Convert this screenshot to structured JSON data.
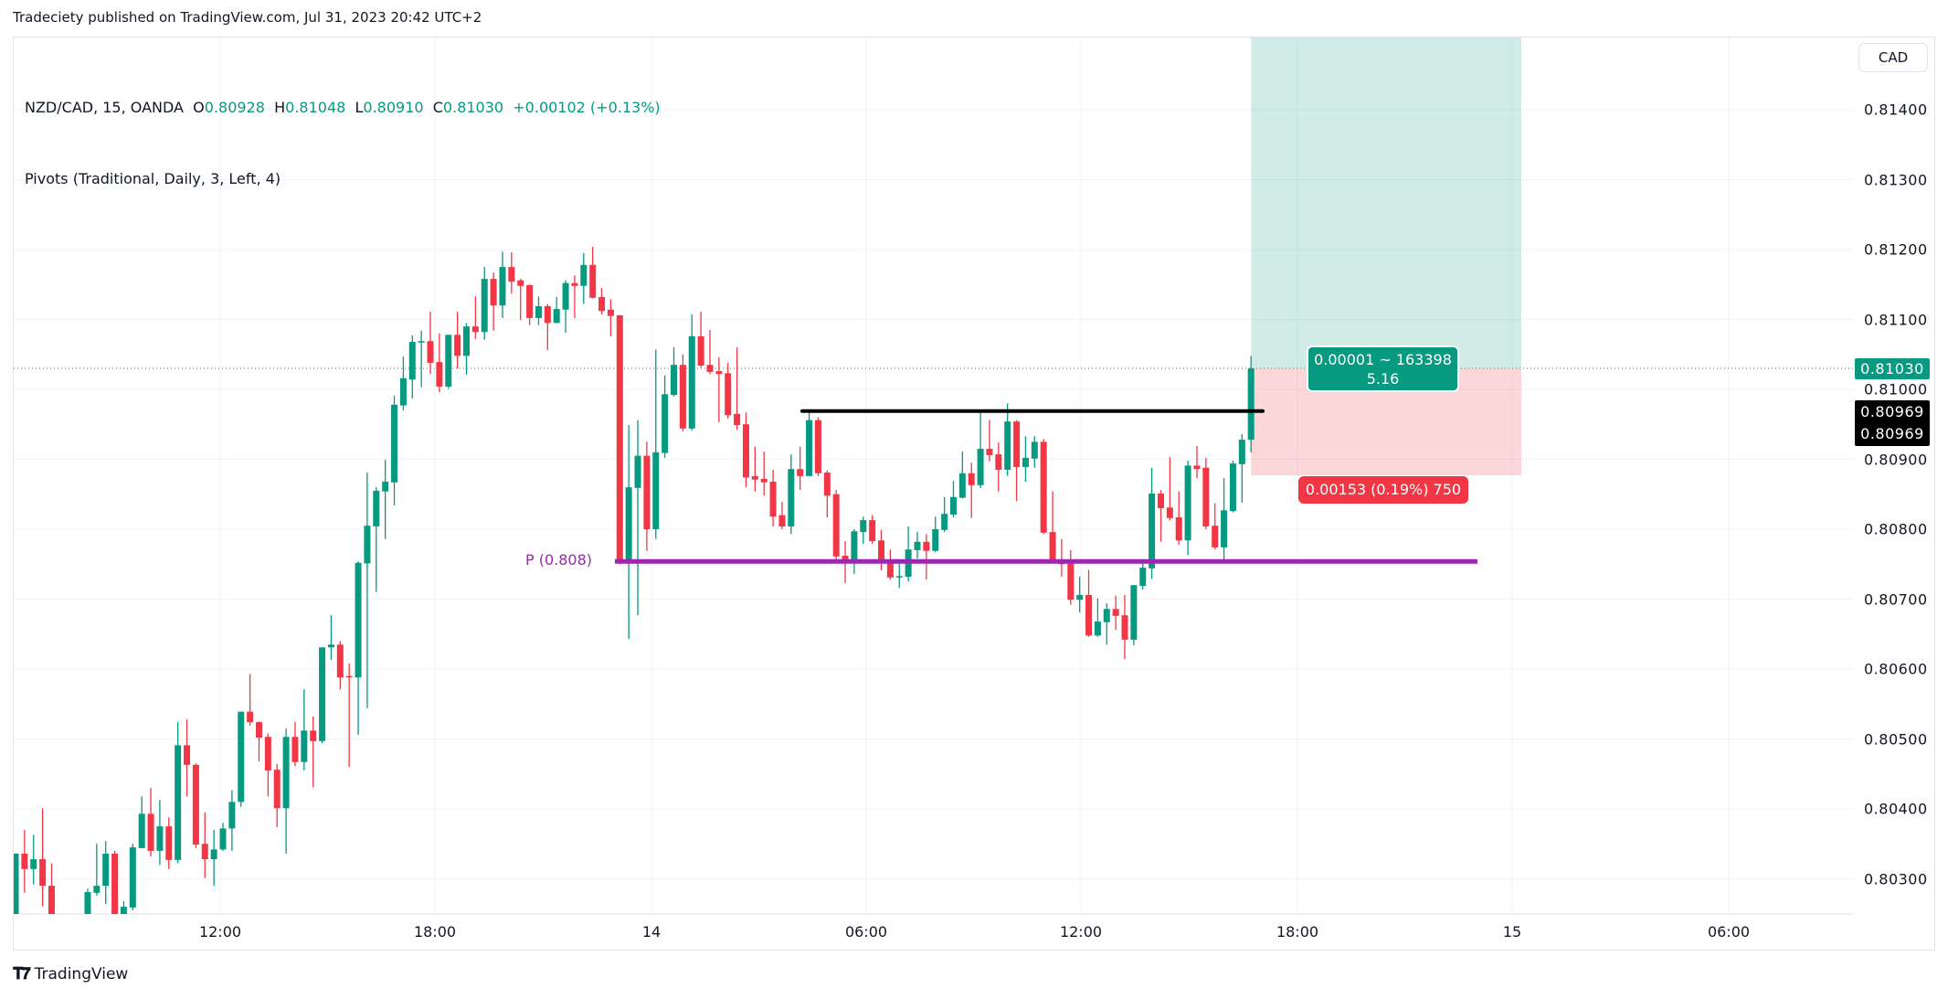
{
  "header": {
    "publisher_line": "Tradeciety published on TradingView.com, Jul 31, 2023 20:42 UTC+2"
  },
  "legend": {
    "symbol": "NZD/CAD, 15, OANDA",
    "o_label": "O",
    "o": "0.80928",
    "h_label": "H",
    "h": "0.81048",
    "l_label": "L",
    "l": "0.80910",
    "c_label": "C",
    "c": "0.81030",
    "change": "+0.00102 (+0.13%)",
    "indicator": "Pivots (Traditional, Daily, 3, Left, 4)"
  },
  "currency_button": "CAD",
  "footer": {
    "logo_icon": "tradingview-logo",
    "logo_mark": "17",
    "logo_text": "TradingView"
  },
  "colors": {
    "up": "#089981",
    "down": "#f23645",
    "pivot": "#9c27b0",
    "level_line": "#000000",
    "grid": "#f0f3fa"
  },
  "chart_data": {
    "type": "candlestick",
    "symbol": "NZD/CAD",
    "interval": "15",
    "ylim": [
      0.8025,
      0.8152
    ],
    "grid": true,
    "y_ticks": [
      "0.81400",
      "0.81300",
      "0.81200",
      "0.81100",
      "0.81000",
      "0.80900",
      "0.80800",
      "0.80700",
      "0.80600",
      "0.80500",
      "0.80400",
      "0.80300"
    ],
    "x_ticks": [
      "12:00",
      "18:00",
      "14",
      "06:00",
      "12:00",
      "18:00",
      "15",
      "06:00"
    ],
    "last_price": {
      "value": 0.8103,
      "label": "0.81030"
    },
    "level_labels": [
      "0.80969",
      "0.80969"
    ],
    "horizontal_line": {
      "value": 0.80969
    },
    "pivot": {
      "label": "P (0.808)",
      "value": 0.80754
    },
    "position": {
      "entry": 0.8103,
      "stop": 0.80877,
      "target_label_line1": "0.00001 ~ 163398",
      "target_label_line2": "5.16",
      "stop_label": "0.00153 (0.19%) 750"
    },
    "candles": [
      [
        0.80243,
        0.80336,
        0.80237,
        0.80336
      ],
      [
        0.80336,
        0.8037,
        0.8028,
        0.80314
      ],
      [
        0.80314,
        0.80363,
        0.80292,
        0.80328
      ],
      [
        0.80328,
        0.80401,
        0.80261,
        0.8029
      ],
      [
        0.8029,
        0.80322,
        0.80217,
        0.80234
      ],
      [
        0.80234,
        0.8025,
        0.802,
        0.8021
      ],
      [
        0.8021,
        0.8024,
        0.80195,
        0.80225
      ],
      [
        0.80225,
        0.80245,
        0.80215,
        0.80236
      ],
      [
        0.80236,
        0.80286,
        0.80225,
        0.80281
      ],
      [
        0.8028,
        0.8035,
        0.80276,
        0.8029
      ],
      [
        0.8029,
        0.80354,
        0.80264,
        0.80336
      ],
      [
        0.80336,
        0.8034,
        0.80225,
        0.80237
      ],
      [
        0.8023,
        0.80268,
        0.80225,
        0.8026
      ],
      [
        0.80259,
        0.8035,
        0.80255,
        0.80345
      ],
      [
        0.80344,
        0.80418,
        0.80344,
        0.80393
      ],
      [
        0.80393,
        0.8043,
        0.80332,
        0.8034
      ],
      [
        0.8034,
        0.80413,
        0.8032,
        0.80375
      ],
      [
        0.80375,
        0.80388,
        0.80314,
        0.80327
      ],
      [
        0.80327,
        0.80524,
        0.80322,
        0.80491
      ],
      [
        0.80491,
        0.80528,
        0.80418,
        0.80463
      ],
      [
        0.80463,
        0.80465,
        0.80344,
        0.80349
      ],
      [
        0.8035,
        0.80395,
        0.80301,
        0.80328
      ],
      [
        0.80328,
        0.8037,
        0.8029,
        0.80342
      ],
      [
        0.80342,
        0.8038,
        0.8034,
        0.80372
      ],
      [
        0.80372,
        0.80427,
        0.8034,
        0.8041
      ],
      [
        0.8041,
        0.80539,
        0.80403,
        0.80539
      ],
      [
        0.80539,
        0.80593,
        0.80519,
        0.80524
      ],
      [
        0.80524,
        0.80525,
        0.80468,
        0.80502
      ],
      [
        0.80503,
        0.80508,
        0.80418,
        0.80455
      ],
      [
        0.80456,
        0.80464,
        0.80374,
        0.80401
      ],
      [
        0.80401,
        0.80515,
        0.80336,
        0.80503
      ],
      [
        0.80503,
        0.80524,
        0.80461,
        0.80467
      ],
      [
        0.80467,
        0.80571,
        0.80455,
        0.80512
      ],
      [
        0.80512,
        0.80532,
        0.80431,
        0.80497
      ],
      [
        0.80497,
        0.80631,
        0.80494,
        0.80631
      ],
      [
        0.80631,
        0.80677,
        0.80613,
        0.80635
      ],
      [
        0.80635,
        0.8064,
        0.80571,
        0.80588
      ],
      [
        0.8059,
        0.80608,
        0.8046,
        0.80588
      ],
      [
        0.80588,
        0.80754,
        0.80506,
        0.80752
      ],
      [
        0.80751,
        0.80881,
        0.80544,
        0.80805
      ],
      [
        0.80804,
        0.8086,
        0.8071,
        0.80855
      ],
      [
        0.80854,
        0.80899,
        0.80786,
        0.80868
      ],
      [
        0.80867,
        0.80991,
        0.80834,
        0.80978
      ],
      [
        0.80977,
        0.81047,
        0.8097,
        0.81016
      ],
      [
        0.81014,
        0.81077,
        0.80987,
        0.81068
      ],
      [
        0.81067,
        0.81084,
        0.81003,
        0.81069
      ],
      [
        0.81069,
        0.81111,
        0.81022,
        0.81038
      ],
      [
        0.81039,
        0.8108,
        0.80996,
        0.81004
      ],
      [
        0.81004,
        0.81078,
        0.81001,
        0.81078
      ],
      [
        0.81078,
        0.81111,
        0.8103,
        0.81048
      ],
      [
        0.81048,
        0.81095,
        0.81021,
        0.8109
      ],
      [
        0.8109,
        0.81133,
        0.81072,
        0.81082
      ],
      [
        0.81082,
        0.81175,
        0.81071,
        0.81158
      ],
      [
        0.81158,
        0.81167,
        0.81084,
        0.8112
      ],
      [
        0.8112,
        0.81197,
        0.81102,
        0.81175
      ],
      [
        0.81175,
        0.81196,
        0.81137,
        0.81154
      ],
      [
        0.81156,
        0.81158,
        0.81099,
        0.81148
      ],
      [
        0.81149,
        0.8115,
        0.81092,
        0.81102
      ],
      [
        0.81102,
        0.81133,
        0.81092,
        0.81119
      ],
      [
        0.81119,
        0.81122,
        0.81056,
        0.81095
      ],
      [
        0.81095,
        0.81132,
        0.81095,
        0.81115
      ],
      [
        0.81114,
        0.81156,
        0.81081,
        0.81152
      ],
      [
        0.81152,
        0.81163,
        0.81102,
        0.81148
      ],
      [
        0.81148,
        0.81195,
        0.81122,
        0.81178
      ],
      [
        0.81178,
        0.81204,
        0.8113,
        0.81131
      ],
      [
        0.81132,
        0.81145,
        0.81107,
        0.81112
      ],
      [
        0.81114,
        0.81129,
        0.81076,
        0.81105
      ],
      [
        0.81106,
        0.81106,
        0.8075,
        0.80756
      ],
      [
        0.80756,
        0.80949,
        0.80643,
        0.8086
      ],
      [
        0.80859,
        0.80956,
        0.80677,
        0.80905
      ],
      [
        0.80905,
        0.80925,
        0.80769,
        0.808
      ],
      [
        0.808,
        0.81057,
        0.80786,
        0.8091
      ],
      [
        0.80909,
        0.8102,
        0.80902,
        0.80993
      ],
      [
        0.80992,
        0.8106,
        0.8099,
        0.81035
      ],
      [
        0.81035,
        0.8105,
        0.8094,
        0.80944
      ],
      [
        0.80944,
        0.81107,
        0.80941,
        0.81076
      ],
      [
        0.81076,
        0.81111,
        0.81031,
        0.81034
      ],
      [
        0.81035,
        0.81085,
        0.81022,
        0.81025
      ],
      [
        0.81026,
        0.81046,
        0.80953,
        0.81022
      ],
      [
        0.81023,
        0.81038,
        0.80958,
        0.80963
      ],
      [
        0.80965,
        0.8106,
        0.80942,
        0.80949
      ],
      [
        0.8095,
        0.80967,
        0.8086,
        0.80874
      ],
      [
        0.80876,
        0.80918,
        0.80854,
        0.80871
      ],
      [
        0.80872,
        0.80911,
        0.80848,
        0.80867
      ],
      [
        0.80868,
        0.80885,
        0.80804,
        0.80818
      ],
      [
        0.8082,
        0.80839,
        0.808,
        0.80804
      ],
      [
        0.80804,
        0.80907,
        0.80793,
        0.80886
      ],
      [
        0.80886,
        0.80918,
        0.80856,
        0.80876
      ],
      [
        0.80876,
        0.8097,
        0.80876,
        0.80956
      ],
      [
        0.80956,
        0.8096,
        0.80876,
        0.8088
      ],
      [
        0.80881,
        0.80884,
        0.80817,
        0.80848
      ],
      [
        0.8085,
        0.80856,
        0.80753,
        0.80761
      ],
      [
        0.80762,
        0.80783,
        0.80723,
        0.80756
      ],
      [
        0.80756,
        0.808,
        0.80736,
        0.80797
      ],
      [
        0.80796,
        0.80818,
        0.80779,
        0.80813
      ],
      [
        0.80813,
        0.8082,
        0.80779,
        0.80783
      ],
      [
        0.80784,
        0.80799,
        0.80741,
        0.80753
      ],
      [
        0.80754,
        0.80771,
        0.80728,
        0.80731
      ],
      [
        0.80731,
        0.80757,
        0.80716,
        0.80733
      ],
      [
        0.80732,
        0.80804,
        0.80725,
        0.80771
      ],
      [
        0.8077,
        0.80796,
        0.80758,
        0.80782
      ],
      [
        0.80782,
        0.80793,
        0.80728,
        0.80769
      ],
      [
        0.80769,
        0.80818,
        0.80767,
        0.808
      ],
      [
        0.80799,
        0.80846,
        0.80796,
        0.80822
      ],
      [
        0.80821,
        0.80869,
        0.80817,
        0.80846
      ],
      [
        0.80845,
        0.80911,
        0.80844,
        0.8088
      ],
      [
        0.8088,
        0.80895,
        0.80816,
        0.80863
      ],
      [
        0.80863,
        0.80967,
        0.80859,
        0.80915
      ],
      [
        0.80915,
        0.80956,
        0.80897,
        0.80906
      ],
      [
        0.80907,
        0.80924,
        0.80854,
        0.80885
      ],
      [
        0.80885,
        0.8098,
        0.80876,
        0.80954
      ],
      [
        0.80954,
        0.80956,
        0.8084,
        0.80889
      ],
      [
        0.80889,
        0.80933,
        0.80868,
        0.80902
      ],
      [
        0.80901,
        0.80933,
        0.80888,
        0.80925
      ],
      [
        0.80925,
        0.80929,
        0.80793,
        0.80795
      ],
      [
        0.80796,
        0.80854,
        0.80752,
        0.80754
      ],
      [
        0.80756,
        0.80786,
        0.80732,
        0.8075
      ],
      [
        0.80752,
        0.8077,
        0.80692,
        0.80699
      ],
      [
        0.80699,
        0.80732,
        0.80681,
        0.80706
      ],
      [
        0.80706,
        0.80742,
        0.80646,
        0.80648
      ],
      [
        0.80648,
        0.80701,
        0.80646,
        0.80668
      ],
      [
        0.80667,
        0.80694,
        0.80635,
        0.80686
      ],
      [
        0.80686,
        0.80705,
        0.80656,
        0.80676
      ],
      [
        0.80677,
        0.80706,
        0.80614,
        0.80642
      ],
      [
        0.80642,
        0.8072,
        0.80634,
        0.8072
      ],
      [
        0.80719,
        0.80756,
        0.80714,
        0.80745
      ],
      [
        0.80744,
        0.80888,
        0.80729,
        0.80851
      ],
      [
        0.80851,
        0.80856,
        0.80782,
        0.8083
      ],
      [
        0.80831,
        0.80903,
        0.80813,
        0.80816
      ],
      [
        0.80817,
        0.80854,
        0.80778,
        0.80784
      ],
      [
        0.80784,
        0.80898,
        0.80763,
        0.80891
      ],
      [
        0.80891,
        0.80919,
        0.80873,
        0.80886
      ],
      [
        0.80888,
        0.80902,
        0.808,
        0.80804
      ],
      [
        0.80805,
        0.80837,
        0.80771,
        0.80774
      ],
      [
        0.80774,
        0.80873,
        0.80757,
        0.80827
      ],
      [
        0.80826,
        0.80898,
        0.80824,
        0.80894
      ],
      [
        0.80893,
        0.80936,
        0.80838,
        0.80928
      ],
      [
        0.80928,
        0.81048,
        0.8091,
        0.8103
      ]
    ]
  }
}
